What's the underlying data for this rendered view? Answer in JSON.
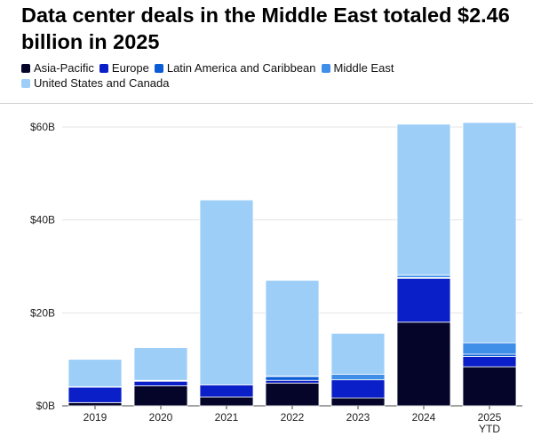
{
  "title": "Data center deals in the Middle East totaled $2.46 billion in 2025",
  "chart_data": {
    "type": "bar",
    "stacked": true,
    "categories": [
      "2019",
      "2020",
      "2021",
      "2022",
      "2023",
      "2024",
      "2025 YTD"
    ],
    "series": [
      {
        "name": "Asia-Pacific",
        "color": "#05052a",
        "values": [
          0.7,
          4.3,
          1.9,
          4.9,
          1.7,
          18.0,
          8.4
        ]
      },
      {
        "name": "Europe",
        "color": "#0a1fc8",
        "values": [
          3.3,
          1.0,
          2.6,
          0.6,
          3.9,
          9.4,
          2.2
        ]
      },
      {
        "name": "Latin America and Caribbean",
        "color": "#0a5cd4",
        "values": [
          0.1,
          0.1,
          0.0,
          0.8,
          0.0,
          0.2,
          0.5
        ]
      },
      {
        "name": "Middle East",
        "color": "#3f8ee8",
        "values": [
          0.0,
          0.1,
          0.0,
          0.1,
          1.2,
          0.5,
          2.46
        ]
      },
      {
        "name": "United States and Canada",
        "color": "#9ccef8",
        "values": [
          5.9,
          7.0,
          39.8,
          20.6,
          8.8,
          32.5,
          47.4
        ]
      }
    ],
    "ylim": [
      0,
      60
    ],
    "yticks": [
      0,
      20,
      40,
      60
    ],
    "ytick_labels": [
      "$0B",
      "$20B",
      "$40B",
      "$60B"
    ],
    "xlabel": "",
    "ylabel": "",
    "grid": true,
    "legend_position": "top"
  }
}
